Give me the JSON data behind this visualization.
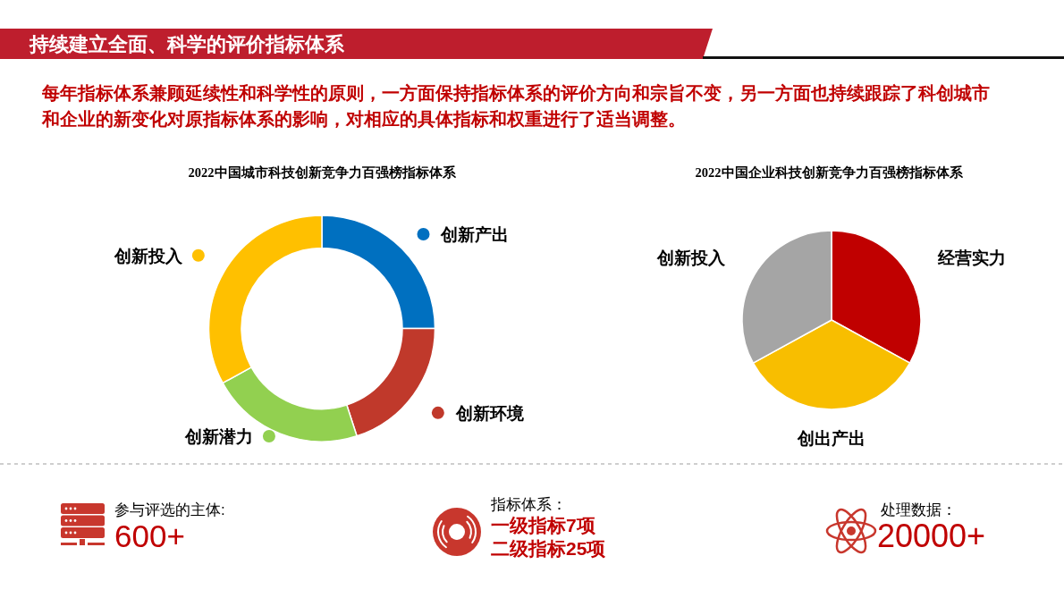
{
  "chart_data": [
    {
      "type": "other",
      "title": "持续建立全面、科学的评价指标体系",
      "subtitle": "每年指标体系兼顾延续性和科学性的原则，一方面保持指标体系的评价方向和宗旨不变，另一方面也持续跟踪了科创城市和企业的新变化对原指标体系的影响，对相应的具体指标和权重进行了适当调整。"
    },
    {
      "type": "donut",
      "title": "2022中国城市科技创新竞争力百强榜指标体系",
      "categories": [
        "创新产出",
        "创新环境",
        "创新潜力",
        "创新投入"
      ],
      "values": [
        25,
        20,
        22,
        33
      ],
      "colors": [
        "#0070c0",
        "#c0392b",
        "#92d050",
        "#ffc000"
      ],
      "legend": "right"
    },
    {
      "type": "pie",
      "title": "2022中国企业科技创新竞争力百强榜指标体系",
      "categories": [
        "经营实力",
        "创出产出",
        "创新投入"
      ],
      "values": [
        33,
        34,
        33
      ],
      "colors": [
        "#c00000",
        "#f8be00",
        "#a5a5a5"
      ]
    },
    {
      "type": "other",
      "title": "参与评选的主体:",
      "annotations": [
        "600+"
      ]
    },
    {
      "type": "other",
      "title": "指标体系：",
      "annotations": [
        "一级指标7项",
        "二级指标25项"
      ]
    },
    {
      "type": "other",
      "title": "处理数据：",
      "annotations": [
        "20000+"
      ]
    }
  ]
}
